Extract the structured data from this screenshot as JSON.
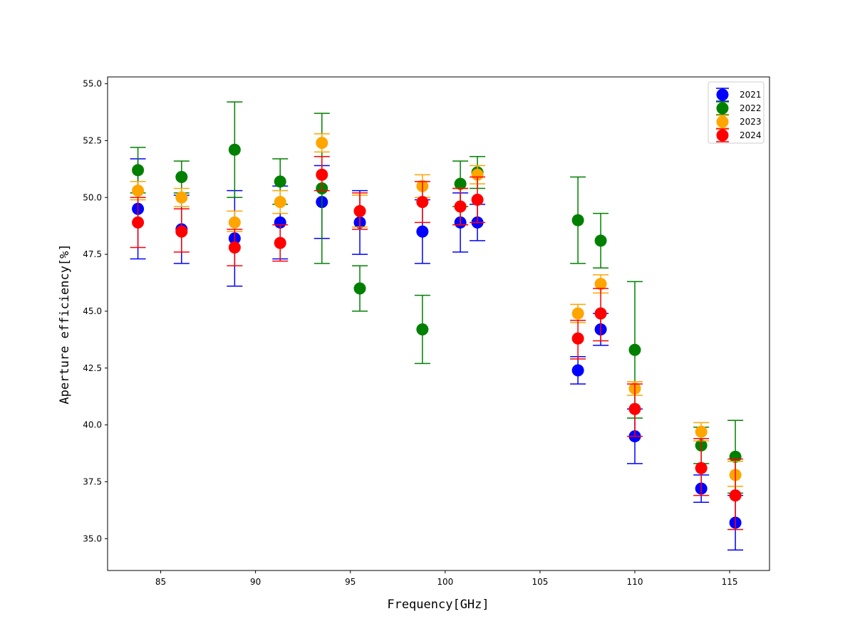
{
  "chart_data": {
    "type": "scatter",
    "title": "",
    "xlabel": "Frequency[GHz]",
    "ylabel": "Aperture efficiency[%]",
    "xlim": [
      82.2,
      117.1
    ],
    "ylim": [
      33.6,
      55.3
    ],
    "xticks": [
      85,
      90,
      95,
      100,
      105,
      110,
      115
    ],
    "yticks": [
      35.0,
      37.5,
      40.0,
      42.5,
      45.0,
      47.5,
      50.0,
      52.5,
      55.0
    ],
    "grid": false,
    "legend_position": "upper right",
    "series": [
      {
        "name": "2021",
        "color": "#0000ff",
        "points": [
          {
            "x": 83.8,
            "y": 49.5,
            "lo": 47.3,
            "hi": 51.7
          },
          {
            "x": 86.1,
            "y": 48.6,
            "lo": 47.1,
            "hi": 50.1
          },
          {
            "x": 88.9,
            "y": 48.2,
            "lo": 46.1,
            "hi": 50.3
          },
          {
            "x": 91.3,
            "y": 48.9,
            "lo": 47.3,
            "hi": 50.5
          },
          {
            "x": 93.5,
            "y": 49.8,
            "lo": 48.2,
            "hi": 51.4
          },
          {
            "x": 95.5,
            "y": 48.9,
            "lo": 47.5,
            "hi": 50.3
          },
          {
            "x": 98.8,
            "y": 48.5,
            "lo": 47.1,
            "hi": 49.9
          },
          {
            "x": 100.8,
            "y": 48.9,
            "lo": 47.6,
            "hi": 50.2
          },
          {
            "x": 101.7,
            "y": 48.9,
            "lo": 48.1,
            "hi": 49.7
          },
          {
            "x": 107.0,
            "y": 42.4,
            "lo": 41.8,
            "hi": 43.0
          },
          {
            "x": 108.2,
            "y": 44.2,
            "lo": 43.5,
            "hi": 44.9
          },
          {
            "x": 110.0,
            "y": 39.5,
            "lo": 38.3,
            "hi": 40.7
          },
          {
            "x": 113.5,
            "y": 37.2,
            "lo": 36.6,
            "hi": 37.8
          },
          {
            "x": 115.3,
            "y": 35.7,
            "lo": 34.5,
            "hi": 36.9
          }
        ]
      },
      {
        "name": "2022",
        "color": "#008000",
        "points": [
          {
            "x": 83.8,
            "y": 51.2,
            "lo": 50.2,
            "hi": 52.2
          },
          {
            "x": 86.1,
            "y": 50.9,
            "lo": 50.2,
            "hi": 51.6
          },
          {
            "x": 88.9,
            "y": 52.1,
            "lo": 50.0,
            "hi": 54.2
          },
          {
            "x": 91.3,
            "y": 50.7,
            "lo": 49.7,
            "hi": 51.7
          },
          {
            "x": 93.5,
            "y": 50.4,
            "lo": 47.1,
            "hi": 53.7
          },
          {
            "x": 95.5,
            "y": 46.0,
            "lo": 45.0,
            "hi": 47.0
          },
          {
            "x": 98.8,
            "y": 44.2,
            "lo": 42.7,
            "hi": 45.7
          },
          {
            "x": 100.8,
            "y": 50.6,
            "lo": 49.6,
            "hi": 51.6
          },
          {
            "x": 101.7,
            "y": 51.1,
            "lo": 50.4,
            "hi": 51.8
          },
          {
            "x": 107.0,
            "y": 49.0,
            "lo": 47.1,
            "hi": 50.9
          },
          {
            "x": 108.2,
            "y": 48.1,
            "lo": 46.9,
            "hi": 49.3
          },
          {
            "x": 110.0,
            "y": 43.3,
            "lo": 40.3,
            "hi": 46.3
          },
          {
            "x": 113.5,
            "y": 39.1,
            "lo": 38.3,
            "hi": 39.9
          },
          {
            "x": 115.3,
            "y": 38.6,
            "lo": 37.0,
            "hi": 40.2
          }
        ]
      },
      {
        "name": "2023",
        "color": "#ffa500",
        "points": [
          {
            "x": 83.8,
            "y": 50.3,
            "lo": 49.9,
            "hi": 50.7
          },
          {
            "x": 86.1,
            "y": 50.0,
            "lo": 49.6,
            "hi": 50.4
          },
          {
            "x": 88.9,
            "y": 48.9,
            "lo": 48.5,
            "hi": 49.4
          },
          {
            "x": 91.3,
            "y": 49.8,
            "lo": 49.3,
            "hi": 50.3
          },
          {
            "x": 93.5,
            "y": 52.4,
            "lo": 52.0,
            "hi": 52.8
          },
          {
            "x": 95.5,
            "y": 49.4,
            "lo": 48.7,
            "hi": 50.1
          },
          {
            "x": 98.8,
            "y": 50.5,
            "lo": 50.0,
            "hi": 51.0
          },
          {
            "x": 100.8,
            "y": 49.6,
            "lo": 48.8,
            "hi": 50.4
          },
          {
            "x": 101.7,
            "y": 51.0,
            "lo": 50.6,
            "hi": 51.4
          },
          {
            "x": 107.0,
            "y": 44.9,
            "lo": 44.5,
            "hi": 45.3
          },
          {
            "x": 108.2,
            "y": 46.2,
            "lo": 45.8,
            "hi": 46.6
          },
          {
            "x": 110.0,
            "y": 41.6,
            "lo": 41.3,
            "hi": 41.9
          },
          {
            "x": 113.5,
            "y": 39.7,
            "lo": 39.3,
            "hi": 40.1
          },
          {
            "x": 115.3,
            "y": 37.8,
            "lo": 37.3,
            "hi": 38.4
          }
        ]
      },
      {
        "name": "2024",
        "color": "#ff0000",
        "points": [
          {
            "x": 83.8,
            "y": 48.9,
            "lo": 47.8,
            "hi": 50.0
          },
          {
            "x": 86.1,
            "y": 48.5,
            "lo": 47.6,
            "hi": 49.5
          },
          {
            "x": 88.9,
            "y": 47.8,
            "lo": 47.0,
            "hi": 48.6
          },
          {
            "x": 91.3,
            "y": 48.0,
            "lo": 47.2,
            "hi": 48.8
          },
          {
            "x": 93.5,
            "y": 51.0,
            "lo": 50.3,
            "hi": 51.8
          },
          {
            "x": 95.5,
            "y": 49.4,
            "lo": 48.6,
            "hi": 50.2
          },
          {
            "x": 98.8,
            "y": 49.8,
            "lo": 48.9,
            "hi": 50.7
          },
          {
            "x": 100.8,
            "y": 49.6,
            "lo": 48.8,
            "hi": 50.4
          },
          {
            "x": 101.7,
            "y": 49.9,
            "lo": 48.9,
            "hi": 50.9
          },
          {
            "x": 107.0,
            "y": 43.8,
            "lo": 42.9,
            "hi": 44.6
          },
          {
            "x": 108.2,
            "y": 44.9,
            "lo": 43.7,
            "hi": 46.0
          },
          {
            "x": 110.0,
            "y": 40.7,
            "lo": 39.5,
            "hi": 41.8
          },
          {
            "x": 113.5,
            "y": 38.1,
            "lo": 36.9,
            "hi": 39.4
          },
          {
            "x": 115.3,
            "y": 36.9,
            "lo": 35.4,
            "hi": 38.5
          }
        ]
      }
    ]
  }
}
